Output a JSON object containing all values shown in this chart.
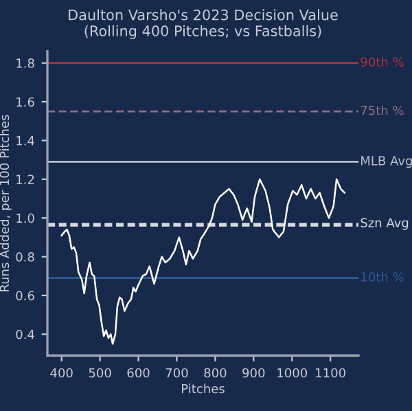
{
  "chart_data": {
    "type": "line",
    "title": "Daulton Varsho's 2023 Decision Value\n(Rolling 400 Pitches; vs Fastballs)",
    "xlabel": "Pitches",
    "ylabel": "Runs Added, per 100 Pitches",
    "xlim": [
      363,
      1173
    ],
    "ylim": [
      0.29,
      1.86
    ],
    "xticks": [
      400,
      500,
      600,
      700,
      800,
      900,
      1000,
      1100
    ],
    "yticks": [
      0.4,
      0.6,
      0.8,
      {
        "value": 1.0,
        "label": "1.0"
      },
      1.2,
      1.4,
      1.6,
      1.8
    ],
    "grid": false,
    "legend": false,
    "marker": "none",
    "line_style": "solid",
    "series": [
      {
        "color": "#ffffff",
        "x": [
          400,
          408,
          414,
          420,
          426,
          432,
          438,
          444,
          453,
          459,
          465,
          473,
          479,
          485,
          492,
          498,
          504,
          510,
          516,
          522,
          528,
          533,
          540,
          545,
          551,
          557,
          564,
          573,
          581,
          587,
          593,
          599,
          611,
          620,
          629,
          641,
          653,
          661,
          670,
          682,
          694,
          706,
          716,
          724,
          732,
          742,
          754,
          762,
          772,
          784,
          792,
          800,
          812,
          824,
          836,
          848,
          859,
          871,
          883,
          895,
          903,
          916,
          931,
          942,
          950,
          966,
          978,
          989,
          1002,
          1013,
          1025,
          1037,
          1049,
          1061,
          1072,
          1084,
          1096,
          1108,
          1116,
          1127,
          1137
        ],
        "values": [
          0.91,
          0.93,
          0.94,
          0.91,
          0.84,
          0.85,
          0.82,
          0.72,
          0.68,
          0.61,
          0.7,
          0.77,
          0.71,
          0.7,
          0.58,
          0.55,
          0.46,
          0.39,
          0.42,
          0.38,
          0.4,
          0.35,
          0.4,
          0.54,
          0.59,
          0.58,
          0.52,
          0.56,
          0.58,
          0.64,
          0.62,
          0.65,
          0.7,
          0.71,
          0.75,
          0.66,
          0.75,
          0.8,
          0.77,
          0.79,
          0.83,
          0.9,
          0.83,
          0.76,
          0.83,
          0.79,
          0.83,
          0.89,
          0.92,
          0.96,
          1.0,
          1.07,
          1.11,
          1.13,
          1.15,
          1.12,
          1.07,
          0.99,
          1.05,
          0.98,
          1.11,
          1.2,
          1.14,
          1.05,
          0.94,
          0.9,
          0.93,
          1.07,
          1.14,
          1.12,
          1.17,
          1.1,
          1.15,
          1.1,
          1.13,
          1.06,
          1.0,
          1.06,
          1.2,
          1.15,
          1.13
        ]
      }
    ],
    "ref_lines": [
      {
        "axis": "y",
        "value": 1.8,
        "label": "90th %",
        "color": "#a8313d",
        "line_style": "solid"
      },
      {
        "axis": "y",
        "value": 1.55,
        "label": "75th %",
        "color": "#8e6f82",
        "line_style": "dashed"
      },
      {
        "axis": "y",
        "value": 1.29,
        "label": "MLB Avg",
        "color": "#b9bdcc",
        "line_style": "solid"
      },
      {
        "axis": "y",
        "value": 0.97,
        "label": "Szn Avg",
        "color": "#d5d8e0",
        "line_style": "dashed"
      },
      {
        "axis": "y",
        "value": 0.96,
        "color": "#d5d8e0",
        "line_style": "dashed"
      },
      {
        "axis": "y",
        "value": 0.69,
        "label": "10th %",
        "color": "#2e5a9c",
        "line_style": "solid"
      }
    ]
  }
}
